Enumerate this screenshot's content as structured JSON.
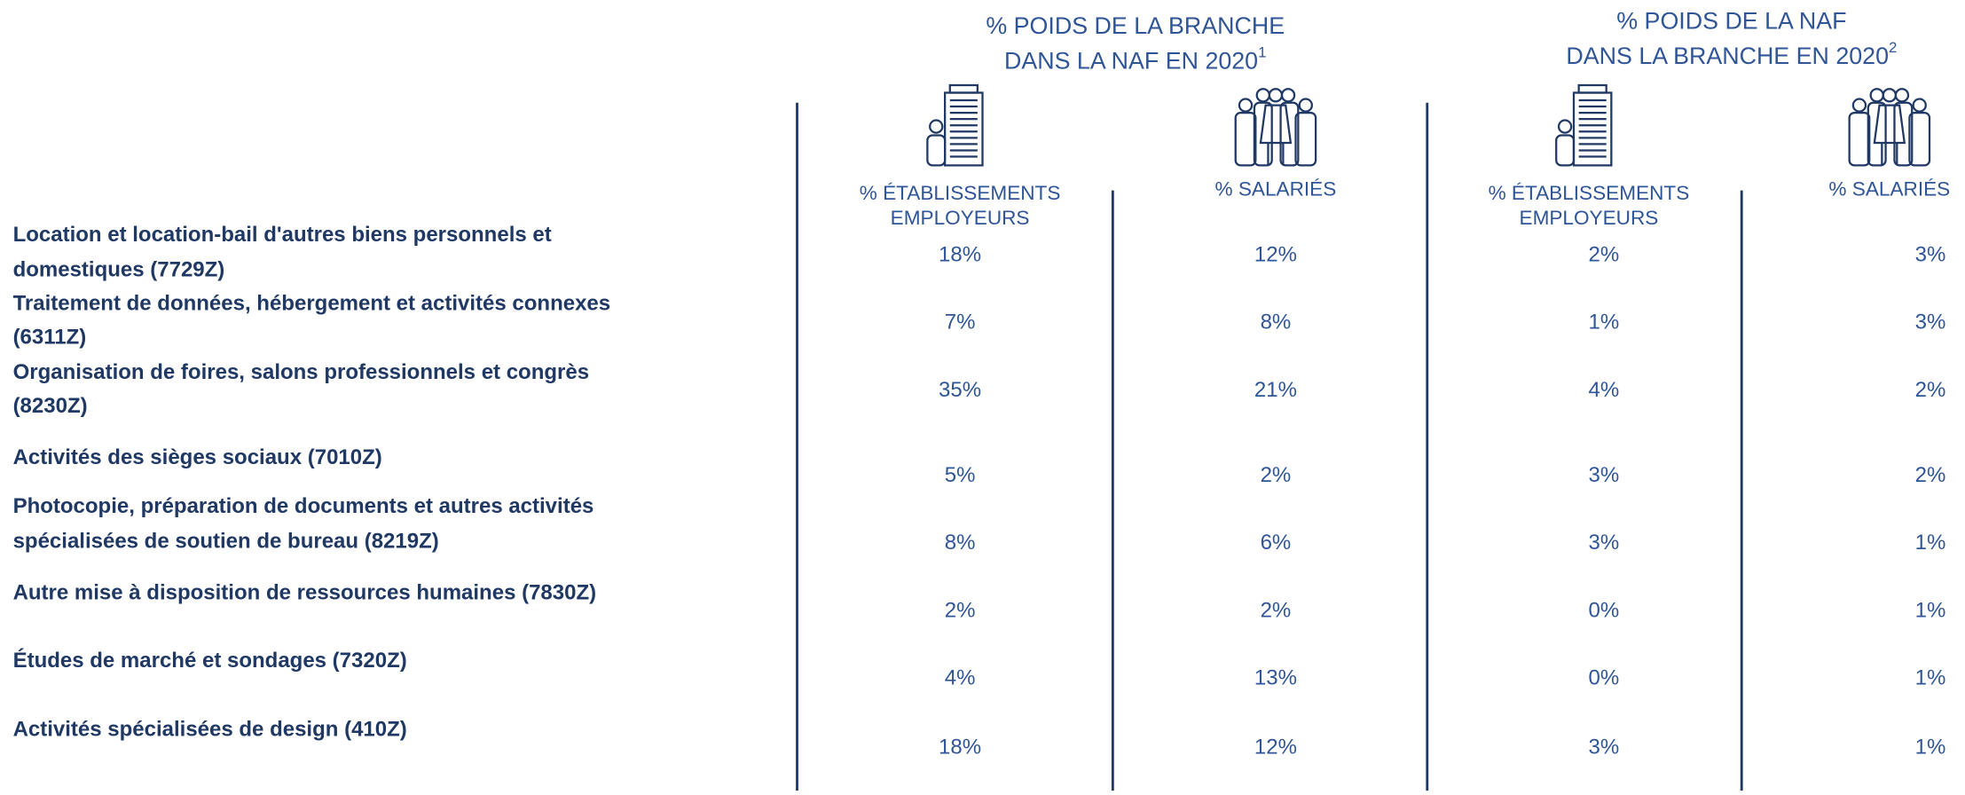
{
  "groups": [
    {
      "title": [
        "% POIDS DE LA BRANCHE",
        "DANS LA NAF EN 2020"
      ],
      "note": "1",
      "columns": [
        [
          "% ÉTABLISSEMENTS",
          "EMPLOYEURS"
        ],
        [
          "% SALARIÉS"
        ]
      ]
    },
    {
      "title": [
        "% POIDS DE LA NAF",
        "DANS LA BRANCHE EN 2020"
      ],
      "note": "2",
      "columns": [
        [
          "% ÉTABLISSEMENTS",
          "EMPLOYEURS"
        ],
        [
          "% SALARIÉS"
        ]
      ]
    }
  ],
  "rows": [
    {
      "label": [
        "Location et location-bail d'autres biens personnels et",
        "domestiques (7729Z)"
      ],
      "values": [
        "18%",
        "12%",
        "2%",
        "3%"
      ]
    },
    {
      "label": [
        "Traitement de données, hébergement et activités connexes",
        "(6311Z)"
      ],
      "values": [
        "7%",
        "8%",
        "1%",
        "3%"
      ]
    },
    {
      "label": [
        "Organisation de foires, salons professionnels et congrès",
        "(8230Z)"
      ],
      "values": [
        "35%",
        "21%",
        "4%",
        "2%"
      ]
    },
    {
      "label": [
        "Activités des sièges sociaux (7010Z)"
      ],
      "values": [
        "5%",
        "2%",
        "3%",
        "2%"
      ]
    },
    {
      "label": [
        "Photocopie, préparation de documents et autres activités",
        "spécialisées de soutien de bureau (8219Z)"
      ],
      "values": [
        "8%",
        "6%",
        "3%",
        "1%"
      ]
    },
    {
      "label": [
        "Autre mise à disposition de ressources humaines (7830Z)"
      ],
      "values": [
        "2%",
        "2%",
        "0%",
        "1%"
      ]
    },
    {
      "label": [
        "Études de marché et sondages (7320Z)"
      ],
      "values": [
        "4%",
        "13%",
        "0%",
        "1%"
      ]
    },
    {
      "label": [
        "Activités spécialisées de design (410Z)"
      ],
      "values": [
        "18%",
        "12%",
        "3%",
        "1%"
      ]
    }
  ]
}
